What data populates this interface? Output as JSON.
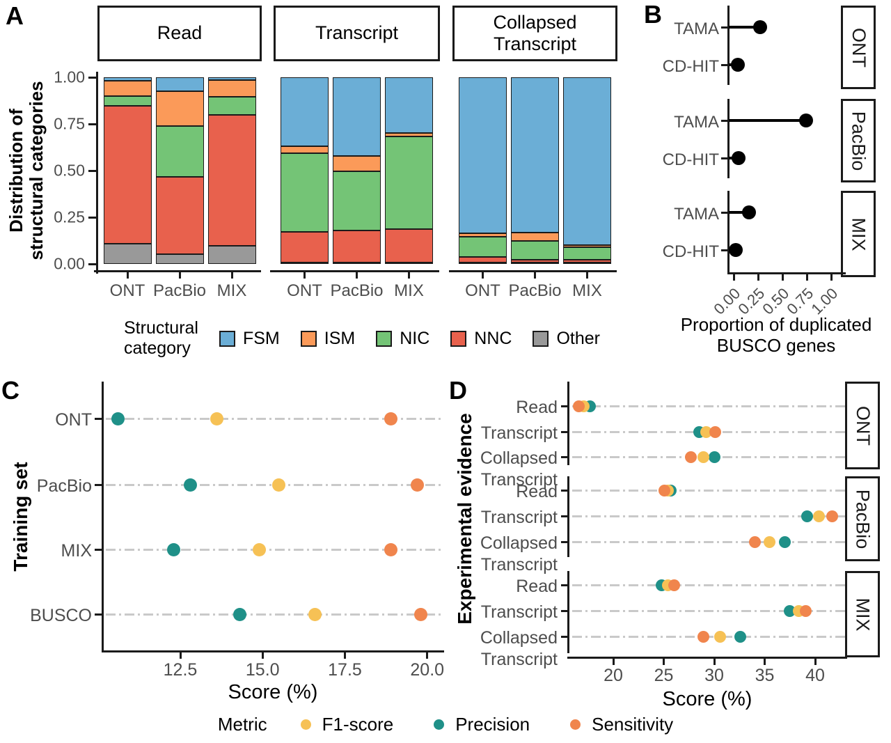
{
  "panels": {
    "a_label": "A",
    "b_label": "B",
    "c_label": "C",
    "d_label": "D"
  },
  "structural_legend": {
    "title_lines": [
      "Structural",
      "category"
    ],
    "items": [
      {
        "label": "FSM",
        "color": "#6baed6"
      },
      {
        "label": "ISM",
        "color": "#fb9a59"
      },
      {
        "label": "NIC",
        "color": "#74c476"
      },
      {
        "label": "NNC",
        "color": "#e8614d"
      },
      {
        "label": "Other",
        "color": "#999999"
      }
    ]
  },
  "metric_legend": {
    "title": "Metric",
    "items": [
      {
        "label": "F1-score",
        "color": "#f6c155"
      },
      {
        "label": "Precision",
        "color": "#1f9088"
      },
      {
        "label": "Sensitivity",
        "color": "#f0854d"
      }
    ]
  },
  "chart_data": [
    {
      "id": "A",
      "type": "bar",
      "stacked": true,
      "ylabel_lines": [
        "Distribution of",
        "structural categories"
      ],
      "ylim": [
        0,
        1
      ],
      "yticks": [
        {
          "v": 1.0,
          "label": "1.00"
        },
        {
          "v": 0.75,
          "label": "0.75"
        },
        {
          "v": 0.5,
          "label": "0.50"
        },
        {
          "v": 0.25,
          "label": "0.25"
        },
        {
          "v": 0.0,
          "label": "0.00"
        }
      ],
      "categories": [
        "ONT",
        "PacBio",
        "MIX"
      ],
      "stack_order_bottom_to_top": [
        "Other",
        "NNC",
        "NIC",
        "ISM",
        "FSM"
      ],
      "facets": [
        {
          "name_lines": [
            "Read"
          ],
          "bars": [
            {
              "category": "ONT",
              "Other": 0.11,
              "NNC": 0.738,
              "NIC": 0.05,
              "ISM": 0.082,
              "FSM": 0.02
            },
            {
              "category": "PacBio",
              "Other": 0.053,
              "NNC": 0.414,
              "NIC": 0.272,
              "ISM": 0.185,
              "FSM": 0.076
            },
            {
              "category": "MIX",
              "Other": 0.097,
              "NNC": 0.702,
              "NIC": 0.096,
              "ISM": 0.09,
              "FSM": 0.015
            }
          ]
        },
        {
          "name_lines": [
            "Transcript"
          ],
          "bars": [
            {
              "category": "ONT",
              "Other": 0.007,
              "NNC": 0.163,
              "NIC": 0.424,
              "ISM": 0.035,
              "FSM": 0.371
            },
            {
              "category": "PacBio",
              "Other": 0.004,
              "NNC": 0.171,
              "NIC": 0.319,
              "ISM": 0.082,
              "FSM": 0.424
            },
            {
              "category": "MIX",
              "Other": 0.004,
              "NNC": 0.181,
              "NIC": 0.495,
              "ISM": 0.019,
              "FSM": 0.301
            }
          ]
        },
        {
          "name_lines": [
            "Collapsed",
            "Transcript"
          ],
          "bars": [
            {
              "category": "ONT",
              "Other": 0.009,
              "NNC": 0.028,
              "NIC": 0.107,
              "ISM": 0.019,
              "FSM": 0.837
            },
            {
              "category": "PacBio",
              "Other": 0.006,
              "NNC": 0.016,
              "NIC": 0.1,
              "ISM": 0.046,
              "FSM": 0.832
            },
            {
              "category": "MIX",
              "Other": 0.006,
              "NNC": 0.014,
              "NIC": 0.07,
              "ISM": 0.008,
              "FSM": 0.902
            }
          ]
        }
      ]
    },
    {
      "id": "B",
      "type": "lollipop",
      "xlabel_lines": [
        "Proportion of duplicated",
        "BUSCO genes"
      ],
      "xlim": [
        0,
        1
      ],
      "xticks": [
        {
          "v": 0.0,
          "label": "0.00"
        },
        {
          "v": 0.25,
          "label": "0.25"
        },
        {
          "v": 0.5,
          "label": "0.50"
        },
        {
          "v": 0.75,
          "label": "0.75"
        },
        {
          "v": 1.0,
          "label": "1.00"
        }
      ],
      "categories": [
        "TAMA",
        "CD-HIT"
      ],
      "facets": [
        {
          "name": "ONT",
          "values": {
            "TAMA": 0.27,
            "CD-HIT": 0.04
          }
        },
        {
          "name": "PacBio",
          "values": {
            "TAMA": 0.74,
            "CD-HIT": 0.05
          }
        },
        {
          "name": "MIX",
          "values": {
            "TAMA": 0.16,
            "CD-HIT": 0.02
          }
        }
      ]
    },
    {
      "id": "C",
      "type": "scatter",
      "ylabel": "Training set",
      "xlabel": "Score (%)",
      "xlim": [
        10.2,
        20.3
      ],
      "xticks": [
        {
          "v": 12.5,
          "label": "12.5"
        },
        {
          "v": 15.0,
          "label": "15.0"
        },
        {
          "v": 17.5,
          "label": "17.5"
        },
        {
          "v": 20.0,
          "label": "20.0"
        }
      ],
      "categories": [
        "ONT",
        "PacBio",
        "MIX",
        "BUSCO"
      ],
      "series": [
        {
          "name": "Precision",
          "values": [
            10.6,
            12.8,
            12.3,
            14.3
          ]
        },
        {
          "name": "F1-score",
          "values": [
            13.6,
            15.5,
            14.9,
            16.6
          ]
        },
        {
          "name": "Sensitivity",
          "values": [
            18.9,
            19.7,
            18.9,
            19.8
          ]
        }
      ]
    },
    {
      "id": "D",
      "type": "scatter",
      "ylabel": "Experimental evidence",
      "xlabel": "Score (%)",
      "xlim": [
        15.8,
        43.3
      ],
      "xticks": [
        {
          "v": 20,
          "label": "20"
        },
        {
          "v": 25,
          "label": "25"
        },
        {
          "v": 30,
          "label": "30"
        },
        {
          "v": 35,
          "label": "35"
        },
        {
          "v": 40,
          "label": "40"
        }
      ],
      "categories": [
        "Read",
        "Transcript",
        "Collapsed Transcript"
      ],
      "category_label_lines": [
        [
          "Read"
        ],
        [
          "Transcript"
        ],
        [
          "Collapsed",
          "Transcript"
        ]
      ],
      "facets": [
        "ONT",
        "PacBio",
        "MIX"
      ],
      "series": [
        {
          "name": "Precision",
          "facet_values": {
            "ONT": [
              17.7,
              28.5,
              30.0
            ],
            "PacBio": [
              25.7,
              39.2,
              37.0
            ],
            "MIX": [
              24.8,
              37.5,
              32.6
            ]
          }
        },
        {
          "name": "F1-score",
          "facet_values": {
            "ONT": [
              17.1,
              29.2,
              28.9
            ],
            "PacBio": [
              25.4,
              40.4,
              35.5
            ],
            "MIX": [
              25.4,
              38.4,
              30.6
            ]
          }
        },
        {
          "name": "Sensitivity",
          "facet_values": {
            "ONT": [
              16.6,
              30.1,
              27.7
            ],
            "PacBio": [
              25.1,
              41.7,
              34.0
            ],
            "MIX": [
              26.0,
              39.1,
              28.9
            ]
          }
        }
      ]
    }
  ]
}
